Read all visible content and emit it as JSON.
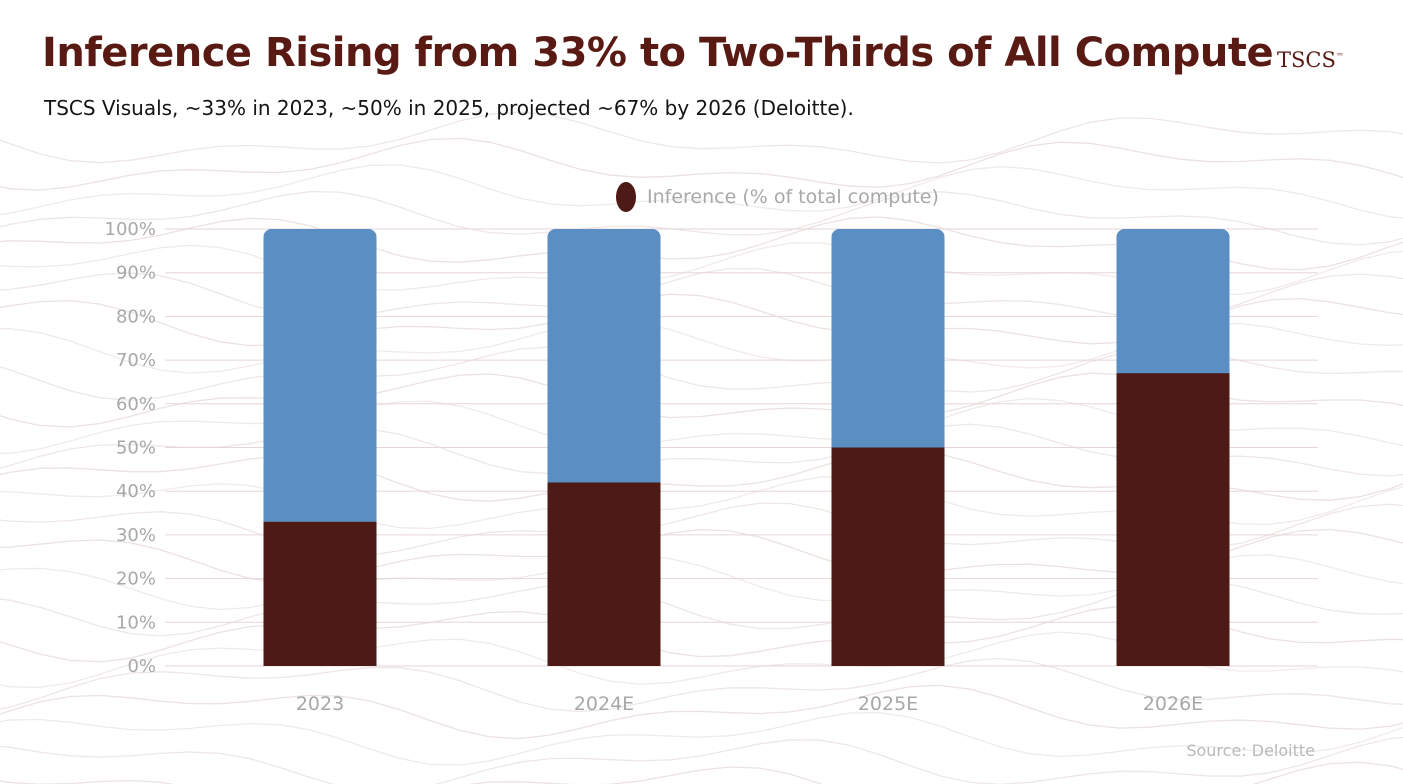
{
  "header": {
    "title": "Inference Rising from 33% to Two-Thirds of All Compute",
    "brand": "TSCS",
    "brand_mark": "™",
    "subtitle": "TSCS Visuals, ~33% in 2023, ~50% in 2025, projected ~67% by 2026 (Deloitte)."
  },
  "source": "Source: Deloitte",
  "colors": {
    "inference": "#4e1a16",
    "remainder": "#5b8ec2",
    "title": "#5a1a14",
    "axis_text": "#a8a8a8",
    "grid": "#e6d6d6"
  },
  "chart_data": {
    "type": "bar",
    "stacked": true,
    "title": "Inference Rising from 33% to Two-Thirds of All Compute",
    "categories": [
      "2023",
      "2024E",
      "2025E",
      "2026E"
    ],
    "series": [
      {
        "name": "Inference (% of total compute)",
        "values": [
          33,
          42,
          50,
          67
        ]
      },
      {
        "name": "",
        "values": [
          67,
          58,
          50,
          33
        ]
      }
    ],
    "legend": [
      "Inference (% of total compute)"
    ],
    "legend_position": "top-center",
    "y_ticks": [
      "0%",
      "10%",
      "20%",
      "30%",
      "40%",
      "50%",
      "60%",
      "70%",
      "80%",
      "90%",
      "100%"
    ],
    "ylim": [
      0,
      100
    ],
    "xlabel": "",
    "ylabel": "",
    "grid": true
  }
}
